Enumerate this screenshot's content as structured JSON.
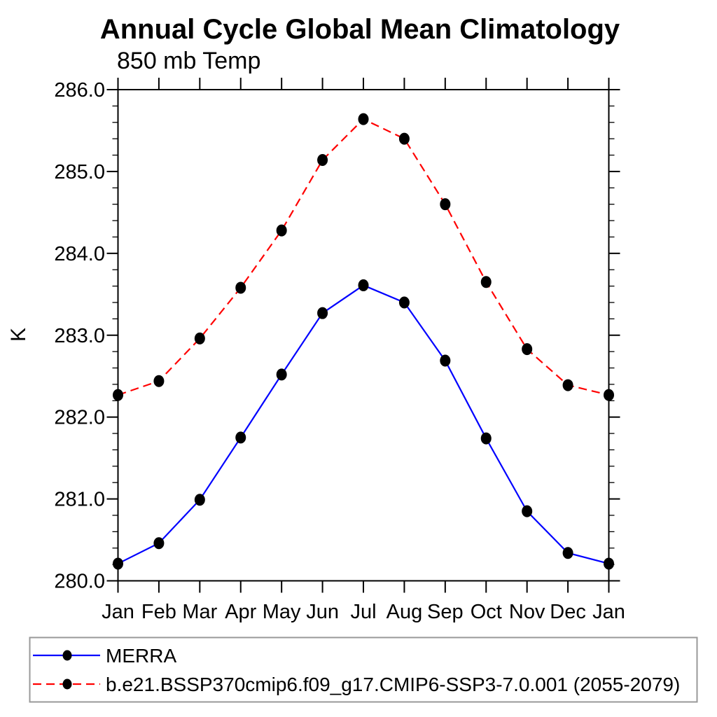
{
  "chart_data": {
    "type": "line",
    "title": "Annual Cycle Global Mean Climatology",
    "subtitle": "850 mb Temp",
    "ylabel": "K",
    "xlabel": "",
    "categories": [
      "Jan",
      "Feb",
      "Mar",
      "Apr",
      "May",
      "Jun",
      "Jul",
      "Aug",
      "Sep",
      "Oct",
      "Nov",
      "Dec",
      "Jan"
    ],
    "ylim": [
      280.0,
      286.0
    ],
    "y_major_step": 1.0,
    "y_minor_step": 0.2,
    "y_tick_labels": [
      "280.0",
      "281.0",
      "282.0",
      "283.0",
      "284.0",
      "285.0",
      "286.0"
    ],
    "grid": false,
    "legend_position": "bottom-left-box",
    "frame_color": "#000000",
    "legend_border_color": "#999999",
    "marker_color": "#000000",
    "series": [
      {
        "name": "MERRA",
        "color": "#0000ff",
        "line_style": "solid",
        "marker": "filled-circle",
        "values": [
          280.21,
          280.46,
          280.99,
          281.75,
          282.52,
          283.27,
          283.61,
          283.4,
          282.69,
          281.74,
          280.85,
          280.34,
          280.21
        ]
      },
      {
        "name": "b.e21.BSSP370cmip6.f09_g17.CMIP6-SSP3-7.0.001 (2055-2079)",
        "color": "#ff0000",
        "line_style": "dashed",
        "marker": "filled-circle",
        "values": [
          282.27,
          282.44,
          282.96,
          283.58,
          284.28,
          285.14,
          285.64,
          285.4,
          284.6,
          283.65,
          282.83,
          282.39,
          282.27
        ]
      }
    ]
  }
}
